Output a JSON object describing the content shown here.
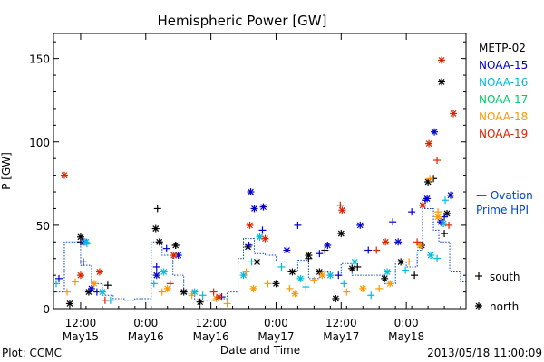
{
  "chart_data": {
    "type": "scatter",
    "title": "Hemispheric Power [GW]",
    "ylabel": "P [GW]",
    "xlabel": "Date and Time",
    "ylim": [
      0,
      165
    ],
    "xlim": [
      "2013-05-15T07:00",
      "2013-05-18T11:00"
    ],
    "yticks": [
      "0",
      "50",
      "100",
      "150"
    ],
    "xticks": [
      {
        "time": "2013-05-15T12:00",
        "line1": "12:00",
        "line2": "May15"
      },
      {
        "time": "2013-05-16T00:00",
        "line1": "0:00",
        "line2": "May16"
      },
      {
        "time": "2013-05-16T12:00",
        "line1": "12:00",
        "line2": "May16"
      },
      {
        "time": "2013-05-17T00:00",
        "line1": "0:00",
        "line2": "May17"
      },
      {
        "time": "2013-05-17T12:00",
        "line1": "12:00",
        "line2": "May17"
      },
      {
        "time": "2013-05-18T00:00",
        "line1": "0:00",
        "line2": "May18"
      }
    ],
    "grid": false,
    "legend_position": "right",
    "series": [
      {
        "name": "METP-02",
        "color": "#000000",
        "south": [
          [
            "2013-05-15T12:00",
            40
          ],
          [
            "2013-05-16T02:10",
            60
          ],
          [
            "2013-05-16T05:30",
            38
          ],
          [
            "2013-05-15T17:00",
            14
          ],
          [
            "2013-05-17T06:00",
            30
          ],
          [
            "2013-05-17T09:00",
            35
          ],
          [
            "2013-05-17T15:00",
            25
          ],
          [
            "2013-05-18T01:30",
            20
          ],
          [
            "2013-05-18T05:00",
            78
          ],
          [
            "2013-05-18T07:00",
            45
          ]
        ],
        "north": [
          [
            "2013-05-15T12:00",
            43
          ],
          [
            "2013-05-15T10:00",
            3
          ],
          [
            "2013-05-15T13:30",
            10
          ],
          [
            "2013-05-16T01:50",
            48
          ],
          [
            "2013-05-16T02:30",
            40
          ],
          [
            "2013-05-16T05:30",
            38
          ],
          [
            "2013-05-16T07:00",
            10
          ],
          [
            "2013-05-16T10:00",
            4
          ],
          [
            "2013-05-16T18:50",
            37
          ],
          [
            "2013-05-16T20:30",
            28
          ],
          [
            "2013-05-17T00:00",
            15
          ],
          [
            "2013-05-17T03:00",
            22
          ],
          [
            "2013-05-17T06:00",
            32
          ],
          [
            "2013-05-17T08:00",
            22
          ],
          [
            "2013-05-17T11:00",
            6
          ],
          [
            "2013-05-17T12:00",
            45
          ],
          [
            "2013-05-17T14:00",
            24
          ],
          [
            "2013-05-17T20:00",
            18
          ],
          [
            "2013-05-17T23:00",
            28
          ],
          [
            "2013-05-18T02:50",
            38
          ],
          [
            "2013-05-18T04:00",
            76
          ],
          [
            "2013-05-18T06:30",
            136
          ],
          [
            "2013-05-18T07:30",
            57
          ]
        ]
      },
      {
        "name": "NOAA-15",
        "color": "#0000cc",
        "south": [
          [
            "2013-05-15T08:00",
            18
          ],
          [
            "2013-05-15T12:30",
            28
          ],
          [
            "2013-05-15T15:00",
            10
          ],
          [
            "2013-05-16T02:00",
            25
          ],
          [
            "2013-05-16T03:50",
            36
          ],
          [
            "2013-05-16T14:00",
            7
          ],
          [
            "2013-05-16T19:00",
            38
          ],
          [
            "2013-05-16T21:30",
            47
          ],
          [
            "2013-05-17T04:00",
            50
          ],
          [
            "2013-05-17T08:00",
            33
          ],
          [
            "2013-05-17T11:30",
            20
          ],
          [
            "2013-05-17T17:00",
            35
          ],
          [
            "2013-05-17T21:30",
            52
          ],
          [
            "2013-05-18T01:00",
            58
          ],
          [
            "2013-05-18T03:30",
            65
          ],
          [
            "2013-05-18T07:00",
            55
          ]
        ],
        "north": [
          [
            "2013-05-15T12:40",
            40
          ],
          [
            "2013-05-15T14:00",
            12
          ],
          [
            "2013-05-16T02:00",
            20
          ],
          [
            "2013-05-16T06:00",
            32
          ],
          [
            "2013-05-16T19:20",
            70
          ],
          [
            "2013-05-16T20:00",
            60
          ],
          [
            "2013-05-16T21:40",
            61
          ],
          [
            "2013-05-17T02:00",
            35
          ],
          [
            "2013-05-17T09:30",
            38
          ],
          [
            "2013-05-17T15:30",
            50
          ],
          [
            "2013-05-17T22:30",
            40
          ],
          [
            "2013-05-18T03:50",
            66
          ],
          [
            "2013-05-18T05:10",
            106
          ],
          [
            "2013-05-18T06:20",
            52
          ],
          [
            "2013-05-18T08:10",
            68
          ]
        ]
      },
      {
        "name": "NOAA-16",
        "color": "#00bbdd",
        "south": [
          [
            "2013-05-15T07:30",
            15
          ],
          [
            "2013-05-15T13:10",
            39
          ],
          [
            "2013-05-15T17:30",
            5
          ],
          [
            "2013-05-16T01:30",
            15
          ],
          [
            "2013-05-16T10:30",
            8
          ],
          [
            "2013-05-16T19:30",
            28
          ],
          [
            "2013-05-17T01:00",
            25
          ],
          [
            "2013-05-17T05:30",
            13
          ],
          [
            "2013-05-17T12:30",
            15
          ],
          [
            "2013-05-17T17:30",
            8
          ],
          [
            "2013-05-17T23:50",
            23
          ],
          [
            "2013-05-18T05:40",
            30
          ],
          [
            "2013-05-18T07:10",
            65
          ]
        ],
        "north": [
          [
            "2013-05-15T13:00",
            40
          ],
          [
            "2013-05-15T16:00",
            10
          ],
          [
            "2013-05-16T03:20",
            22
          ],
          [
            "2013-05-16T09:00",
            10
          ],
          [
            "2013-05-16T18:00",
            20
          ],
          [
            "2013-05-16T21:00",
            43
          ],
          [
            "2013-05-17T04:30",
            18
          ],
          [
            "2013-05-17T10:00",
            20
          ],
          [
            "2013-05-17T14:30",
            28
          ],
          [
            "2013-05-17T20:30",
            22
          ],
          [
            "2013-05-18T04:30",
            32
          ],
          [
            "2013-05-18T06:50",
            51
          ]
        ]
      },
      {
        "name": "NOAA-17",
        "color": "#00cc66",
        "south": [],
        "north": []
      },
      {
        "name": "NOAA-18",
        "color": "#ff9900",
        "south": [
          [
            "2013-05-15T09:30",
            10
          ],
          [
            "2013-05-15T11:00",
            16
          ],
          [
            "2013-05-16T03:00",
            10
          ],
          [
            "2013-05-16T08:30",
            8
          ],
          [
            "2013-05-16T15:00",
            3
          ],
          [
            "2013-05-16T18:30",
            22
          ],
          [
            "2013-05-16T22:30",
            15
          ],
          [
            "2013-05-17T02:30",
            12
          ],
          [
            "2013-05-17T07:00",
            17
          ],
          [
            "2013-05-17T13:00",
            10
          ],
          [
            "2013-05-17T19:00",
            12
          ],
          [
            "2013-05-18T00:30",
            28
          ],
          [
            "2013-05-18T04:20",
            78
          ],
          [
            "2013-05-18T05:50",
            58
          ]
        ],
        "north": [
          [
            "2013-05-15T14:30",
            15
          ],
          [
            "2013-05-16T04:00",
            12
          ],
          [
            "2013-05-16T13:00",
            6
          ],
          [
            "2013-05-16T19:50",
            12
          ],
          [
            "2013-05-17T03:30",
            9
          ],
          [
            "2013-05-17T08:30",
            20
          ],
          [
            "2013-05-17T16:00",
            12
          ],
          [
            "2013-05-17T21:00",
            15
          ],
          [
            "2013-05-18T02:30",
            38
          ],
          [
            "2013-05-18T05:50",
            55
          ]
        ]
      },
      {
        "name": "NOAA-19",
        "color": "#dd2200",
        "south": [
          [
            "2013-05-15T16:30",
            5
          ],
          [
            "2013-05-16T04:30",
            15
          ],
          [
            "2013-05-16T12:30",
            10
          ],
          [
            "2013-05-17T11:50",
            62
          ],
          [
            "2013-05-17T18:30",
            35
          ],
          [
            "2013-05-18T02:00",
            40
          ],
          [
            "2013-05-18T05:40",
            89
          ],
          [
            "2013-05-18T07:50",
            50
          ]
        ],
        "north": [
          [
            "2013-05-15T09:00",
            80
          ],
          [
            "2013-05-15T12:00",
            20
          ],
          [
            "2013-05-15T15:30",
            22
          ],
          [
            "2013-05-16T05:10",
            32
          ],
          [
            "2013-05-16T13:30",
            7
          ],
          [
            "2013-05-16T19:10",
            50
          ],
          [
            "2013-05-16T22:00",
            42
          ],
          [
            "2013-05-17T12:10",
            59
          ],
          [
            "2013-05-17T20:10",
            40
          ],
          [
            "2013-05-18T03:00",
            62
          ],
          [
            "2013-05-18T04:10",
            99
          ],
          [
            "2013-05-18T06:30",
            149
          ],
          [
            "2013-05-18T08:40",
            117
          ]
        ]
      }
    ],
    "ovation": {
      "name": "Ovation Prime HPI",
      "legend_line1": "— Ovation",
      "legend_line2": "Prime HPI",
      "color": "#0044cc",
      "values": [
        [
          "2013-05-15T07:00",
          10
        ],
        [
          "2013-05-15T09:00",
          40
        ],
        [
          "2013-05-15T11:00",
          40
        ],
        [
          "2013-05-15T12:00",
          26
        ],
        [
          "2013-05-15T14:00",
          15
        ],
        [
          "2013-05-15T16:00",
          8
        ],
        [
          "2013-05-15T18:00",
          6
        ],
        [
          "2013-05-15T20:00",
          5
        ],
        [
          "2013-05-15T22:00",
          6
        ],
        [
          "2013-05-16T00:00",
          6
        ],
        [
          "2013-05-16T01:00",
          40
        ],
        [
          "2013-05-16T03:00",
          32
        ],
        [
          "2013-05-16T05:00",
          20
        ],
        [
          "2013-05-16T07:00",
          9
        ],
        [
          "2013-05-16T09:00",
          5
        ],
        [
          "2013-05-16T11:00",
          5
        ],
        [
          "2013-05-16T13:00",
          6
        ],
        [
          "2013-05-16T15:00",
          10
        ],
        [
          "2013-05-16T17:00",
          30
        ],
        [
          "2013-05-16T18:00",
          42
        ],
        [
          "2013-05-16T20:00",
          33
        ],
        [
          "2013-05-16T22:00",
          32
        ],
        [
          "2013-05-17T00:00",
          28
        ],
        [
          "2013-05-17T02:00",
          22
        ],
        [
          "2013-05-17T04:00",
          29
        ],
        [
          "2013-05-17T06:00",
          18
        ],
        [
          "2013-05-17T08:00",
          22
        ],
        [
          "2013-05-17T10:00",
          20
        ],
        [
          "2013-05-17T12:00",
          27
        ],
        [
          "2013-05-17T14:00",
          20
        ],
        [
          "2013-05-17T16:00",
          20
        ],
        [
          "2013-05-17T18:00",
          20
        ],
        [
          "2013-05-17T20:00",
          15
        ],
        [
          "2013-05-17T22:00",
          28
        ],
        [
          "2013-05-18T00:00",
          25
        ],
        [
          "2013-05-18T02:00",
          35
        ],
        [
          "2013-05-18T03:00",
          60
        ],
        [
          "2013-05-18T05:00",
          47
        ],
        [
          "2013-05-18T06:00",
          40
        ],
        [
          "2013-05-18T08:00",
          22
        ],
        [
          "2013-05-18T10:00",
          16
        ]
      ]
    },
    "marker_legend": {
      "south": "south",
      "north": "north"
    }
  },
  "footer": {
    "plot_credit": "Plot: CCMC",
    "timestamp": "2013/05/18 11:00:09"
  }
}
